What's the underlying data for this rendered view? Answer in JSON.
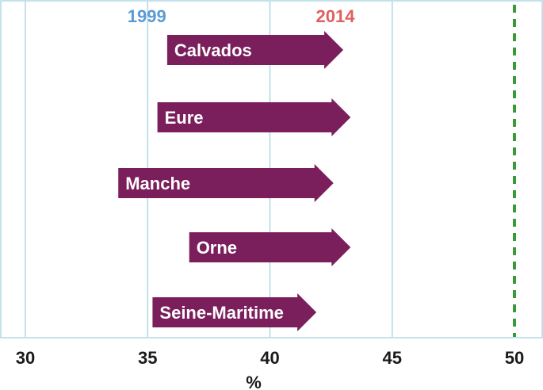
{
  "chart_data": {
    "type": "arrow",
    "xlabel": "%",
    "xlim": [
      30,
      51
    ],
    "xticks": [
      30,
      35,
      40,
      45,
      50
    ],
    "tick_labels": [
      "30",
      "35",
      "40",
      "45",
      "50"
    ],
    "start_label": "1999",
    "end_label": "2014",
    "reference_line": 50,
    "grid": true,
    "categories": [
      "Calvados",
      "Eure",
      "Manche",
      "Orne",
      "Seine-Maritime"
    ],
    "series": [
      {
        "name": "1999",
        "values": [
          35.8,
          35.4,
          33.8,
          36.7,
          35.2
        ]
      },
      {
        "name": "2014",
        "values": [
          43.0,
          43.3,
          42.6,
          43.3,
          41.9
        ]
      }
    ]
  },
  "colors": {
    "arrow": "#7a1f5c",
    "start_label": "#5b9bd5",
    "end_label": "#e06060",
    "gridline": "#add8e6",
    "reference_line": "#3a9a3a",
    "frame": "#add8e6"
  }
}
